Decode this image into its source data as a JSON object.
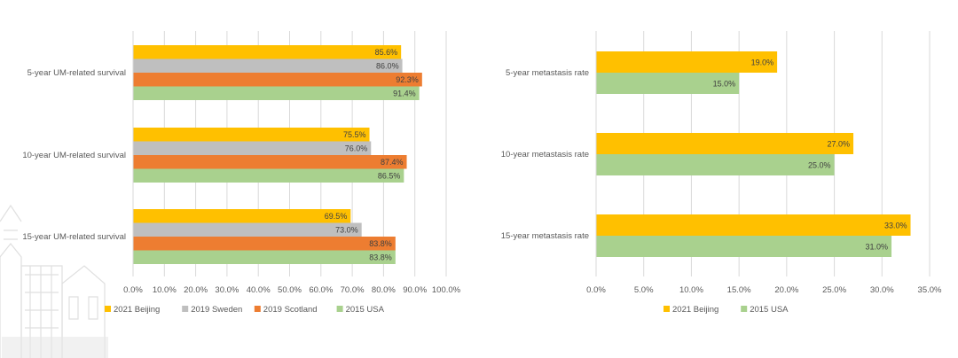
{
  "chart_data": [
    {
      "type": "bar",
      "orientation": "horizontal",
      "categories": [
        "5-year UM-related survival",
        "10-year UM-related survival",
        "15-year UM-related survival"
      ],
      "series": [
        {
          "name": "2021 Beijing",
          "color": "#FFC000",
          "values": [
            85.6,
            75.5,
            69.5
          ],
          "labels": [
            "85.6%",
            "75.5%",
            "69.5%"
          ]
        },
        {
          "name": "2019 Sweden",
          "color": "#BFBFBF",
          "values": [
            86.0,
            76.0,
            73.0
          ],
          "labels": [
            "86.0%",
            "76.0%",
            "73.0%"
          ]
        },
        {
          "name": "2019 Scotland",
          "color": "#ED7D31",
          "values": [
            92.3,
            87.4,
            83.8
          ],
          "labels": [
            "92.3%",
            "87.4%",
            "83.8%"
          ]
        },
        {
          "name": "2015  USA",
          "color": "#A9D18E",
          "values": [
            91.4,
            86.5,
            83.8
          ],
          "labels": [
            "91.4%",
            "86.5%",
            "83.8%"
          ]
        }
      ],
      "xlim": [
        0,
        100
      ],
      "xticks": [
        0,
        10,
        20,
        30,
        40,
        50,
        60,
        70,
        80,
        90,
        100
      ],
      "xtick_labels": [
        "0.0%",
        "10.0%",
        "20.0%",
        "30.0%",
        "40.0%",
        "50.0%",
        "60.0%",
        "70.0%",
        "80.0%",
        "90.0%",
        "100.0%"
      ],
      "grid": "vertical",
      "legend_position": "bottom"
    },
    {
      "type": "bar",
      "orientation": "horizontal",
      "categories": [
        "5-year metastasis rate",
        "10-year metastasis rate",
        "15-year metastasis rate"
      ],
      "series": [
        {
          "name": "2021 Beijing",
          "color": "#FFC000",
          "values": [
            19.0,
            27.0,
            33.0
          ],
          "labels": [
            "19.0%",
            "27.0%",
            "33.0%"
          ]
        },
        {
          "name": "2015  USA",
          "color": "#A9D18E",
          "values": [
            15.0,
            25.0,
            31.0
          ],
          "labels": [
            "15.0%",
            "25.0%",
            "31.0%"
          ]
        }
      ],
      "xlim": [
        0,
        35
      ],
      "xticks": [
        0,
        5,
        10,
        15,
        20,
        25,
        30,
        35
      ],
      "xtick_labels": [
        "0.0%",
        "5.0%",
        "10.0%",
        "15.0%",
        "20.0%",
        "25.0%",
        "30.0%",
        "35.0%"
      ],
      "grid": "vertical",
      "legend_position": "bottom"
    }
  ],
  "colors": {
    "grid": "#D9D9D9",
    "text": "#595959",
    "watermark": "#D0D0D0"
  }
}
